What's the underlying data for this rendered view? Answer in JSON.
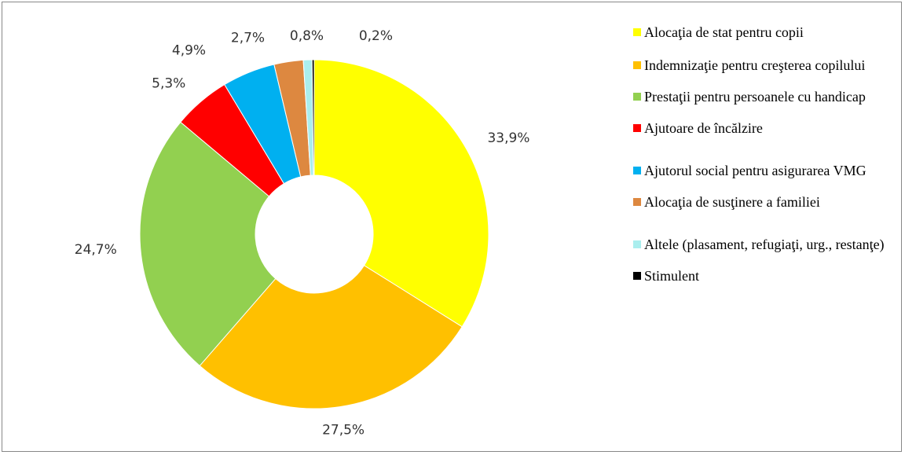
{
  "chart_data": {
    "type": "donut",
    "categories": [
      "Alocaţia de stat pentru copii",
      "Indemnizaţie pentru creşterea copilului",
      "Prestaţii pentru persoanele cu handicap",
      "Ajutoare de încălzire",
      "Ajutorul social pentru asigurarea VMG",
      "Alocaţia de susţinere a familiei",
      "Altele (plasament, refugiaţi, urg., restanţe)",
      "Stimulent"
    ],
    "values": [
      33.9,
      27.5,
      24.7,
      5.3,
      4.9,
      2.7,
      0.8,
      0.2
    ],
    "value_labels": [
      "33,9%",
      "27,5%",
      "24,7%",
      "5,3%",
      "4,9%",
      "2,7%",
      "0,8%",
      "0,2%"
    ],
    "colors": [
      "#ffff00",
      "#ffc000",
      "#92d050",
      "#ff0000",
      "#00b0f0",
      "#dd8840",
      "#aaeeee",
      "#000000"
    ],
    "legend": "right"
  }
}
